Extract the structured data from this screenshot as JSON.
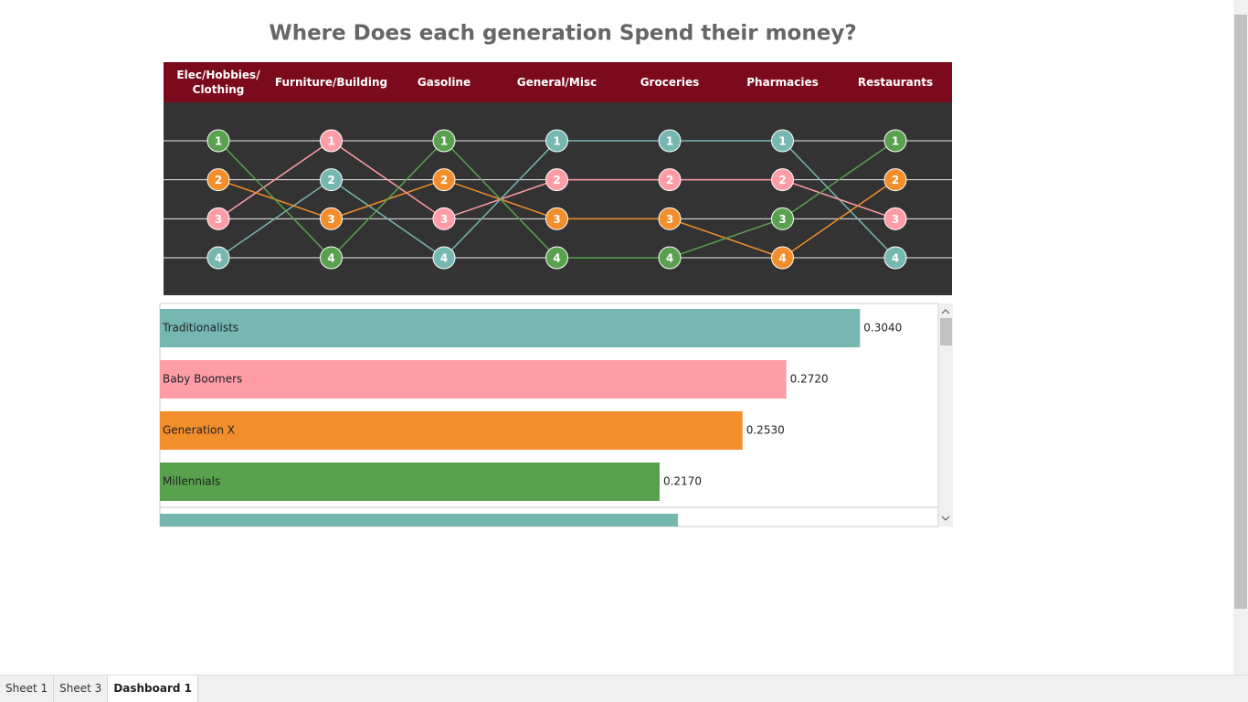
{
  "title": "Where Does each generation Spend their money?",
  "bump_chart": {
    "type": "bump",
    "categories": [
      "Elec/Hobbies/ Clothing",
      "Furniture/Building",
      "Gasoline",
      "General/Misc",
      "Groceries",
      "Pharmacies",
      "Restaurants"
    ],
    "ylim": [
      1,
      4
    ],
    "series": [
      {
        "color": "#76b7b2",
        "values": [
          4,
          2,
          4,
          1,
          1,
          1,
          4
        ]
      },
      {
        "color": "#ff9da7",
        "values": [
          3,
          1,
          3,
          2,
          2,
          2,
          3
        ]
      },
      {
        "color": "#f28e2b",
        "values": [
          2,
          3,
          2,
          3,
          3,
          4,
          2
        ]
      },
      {
        "color": "#59a14f",
        "values": [
          1,
          4,
          1,
          4,
          4,
          3,
          1
        ]
      }
    ]
  },
  "bar_chart": {
    "type": "hbar",
    "categories": [
      "Traditionalists",
      "Baby Boomers",
      "Generation X",
      "Millennials"
    ],
    "values": [
      0.304,
      0.272,
      0.253,
      0.217
    ],
    "value_labels": [
      "0.3040",
      "0.2720",
      "0.2530",
      "0.2170"
    ],
    "colors": [
      "#76b7b2",
      "#ff9da7",
      "#f28e2b",
      "#59a14f"
    ],
    "xlim": [
      0,
      0.338
    ],
    "next_pane": {
      "color": "#76b7b2",
      "values": [
        0.225
      ]
    }
  },
  "tabs": [
    "Sheet 1",
    "Sheet 3",
    "Dashboard 1"
  ]
}
